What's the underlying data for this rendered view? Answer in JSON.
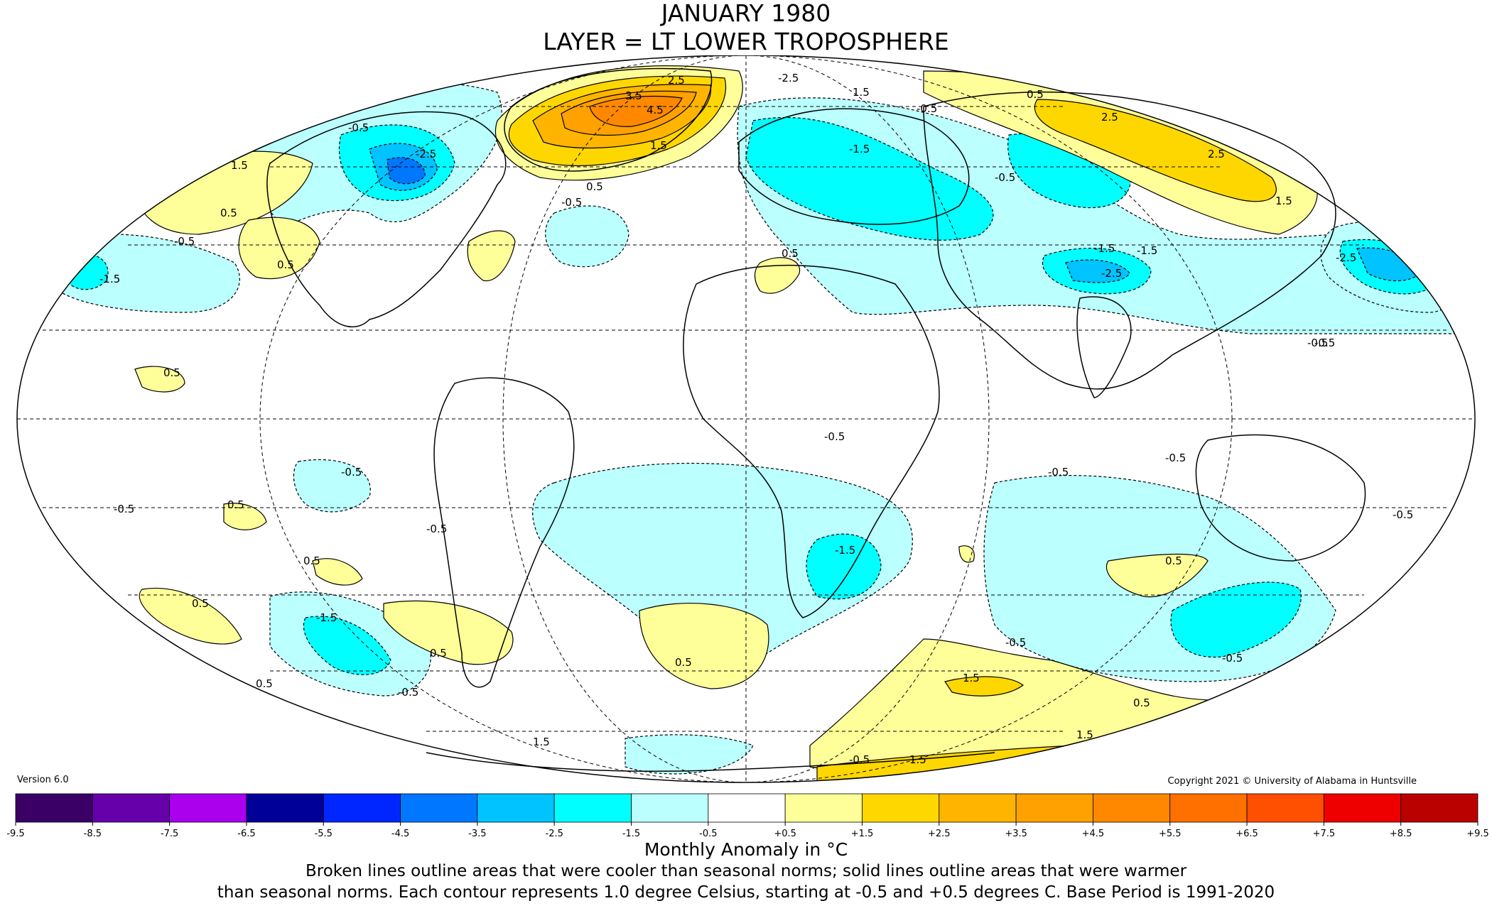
{
  "title": "JANUARY 1980",
  "subtitle": "LAYER = LT LOWER TROPOSPHERE",
  "version": "Version 6.0",
  "copyright": "Copyright 2021 © University of Alabama in Huntsville",
  "colorbar": {
    "title": "Monthly Anomaly in °C",
    "ticks": [
      "-9.5",
      "-8.5",
      "-7.5",
      "-6.5",
      "-5.5",
      "-4.5",
      "-3.5",
      "-2.5",
      "-1.5",
      "-0.5",
      "+0.5",
      "+1.5",
      "+2.5",
      "+3.5",
      "+4.5",
      "+5.5",
      "+6.5",
      "+7.5",
      "+8.5",
      "+9.5"
    ],
    "colors": [
      "#3a0065",
      "#6600aa",
      "#aa00ee",
      "#000099",
      "#0026ff",
      "#0077ff",
      "#00c3ff",
      "#00ffff",
      "#bbffff",
      "#ffffff",
      "#ffff99",
      "#ffd700",
      "#ffb500",
      "#ffa100",
      "#ff8800",
      "#ff7000",
      "#ff4f00",
      "#ee0000",
      "#bb0000"
    ]
  },
  "notes": {
    "line1": "Broken lines outline areas that were cooler than seasonal norms; solid lines outline areas that were warmer",
    "line2": "than seasonal norms. Each contour represents 1.0 degree Celsius, starting at -0.5 and +0.5 degrees C. Base Period is 1991-2020"
  },
  "map": {
    "projection": "Mollweide",
    "contour_labels": [
      "0.5",
      "1.5",
      "2.5",
      "3.5",
      "4.5",
      "-0.5",
      "-1.5",
      "-2.5"
    ]
  },
  "colors": {
    "warm1": "#ffff99",
    "warm2": "#ffd700",
    "warm3": "#ffb500",
    "warm4": "#ffa100",
    "warm5": "#ff8800",
    "cool1": "#bbffff",
    "cool2": "#00ffff",
    "cool3": "#00c3ff",
    "cool4": "#0077ff"
  }
}
